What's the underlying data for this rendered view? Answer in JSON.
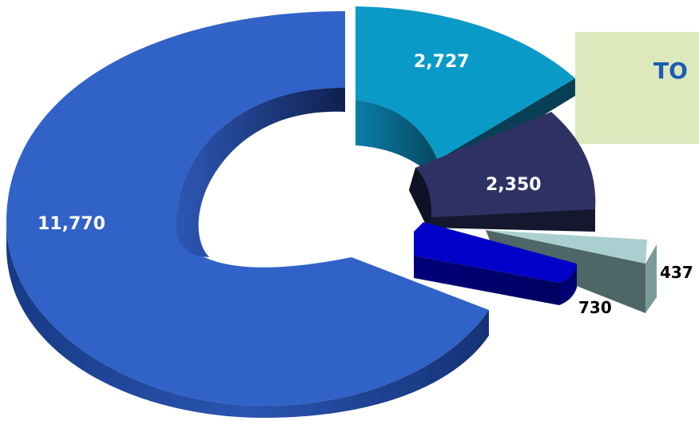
{
  "chart_data": {
    "type": "pie",
    "style": "3d-exploded-donut",
    "title": "TO",
    "slices": [
      {
        "value": 11770,
        "label": "11,770",
        "color": "#2f5fc4",
        "label_color": "#ffffff"
      },
      {
        "value": 2727,
        "label": "2,727",
        "color": "#0a9ac8",
        "label_color": "#ffffff"
      },
      {
        "value": 2350,
        "label": "2,350",
        "color": "#2a2d5a",
        "label_color": "#ffffff"
      },
      {
        "value": 437,
        "label": "437",
        "color": "#a9cfd0",
        "label_color": "#000000"
      },
      {
        "value": 730,
        "label": "730",
        "color": "#0000c8",
        "label_color": "#000000"
      }
    ],
    "legend": "none",
    "grid": false
  }
}
